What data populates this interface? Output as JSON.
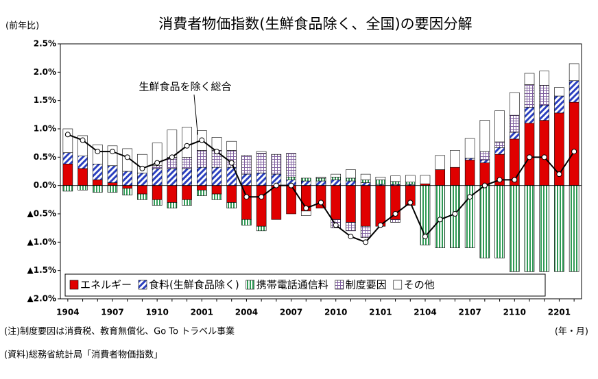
{
  "chart_data": {
    "type": "stacked_bar_line",
    "title": "消費者物価指数(生鮮食品除く、全国)の要因分解",
    "y_label": "(前年比)",
    "x_label": "(年・月)",
    "note": "(注)制度要因は消費税、教育無償化、Go To トラベル事業",
    "source": "(資料)総務省統計局「消費者物価指数」",
    "categories": [
      "1904",
      null,
      null,
      "1907",
      null,
      null,
      "1910",
      null,
      null,
      "2001",
      null,
      null,
      "2004",
      null,
      null,
      "2007",
      null,
      null,
      "2010",
      null,
      null,
      "2101",
      null,
      null,
      "2104",
      null,
      null,
      "2107",
      null,
      null,
      "2110",
      null,
      null,
      "2201",
      null
    ],
    "ylim": [
      -2.0,
      2.5
    ],
    "yticks": [
      {
        "value": 2.5,
        "label": "2.5%"
      },
      {
        "value": 2.0,
        "label": "2.0%"
      },
      {
        "value": 1.5,
        "label": "1.5%"
      },
      {
        "value": 1.0,
        "label": "1.0%"
      },
      {
        "value": 0.5,
        "label": "0.5%"
      },
      {
        "value": 0.0,
        "label": "0.0%"
      },
      {
        "value": -0.5,
        "label": "▲0.5%"
      },
      {
        "value": -1.0,
        "label": "▲1.0%"
      },
      {
        "value": -1.5,
        "label": "▲1.5%"
      },
      {
        "value": -2.0,
        "label": "▲2.0%"
      }
    ],
    "grid": false,
    "series": [
      {
        "name": "エネルギー",
        "color": "#e00000",
        "pattern": "solid",
        "values": [
          0.38,
          0.3,
          0.1,
          0.05,
          -0.05,
          -0.15,
          -0.25,
          -0.3,
          -0.25,
          -0.08,
          -0.15,
          -0.3,
          -0.6,
          -0.72,
          -0.6,
          -0.5,
          -0.45,
          -0.4,
          -0.6,
          -0.65,
          -0.72,
          -0.72,
          -0.6,
          -0.35,
          0.03,
          0.28,
          0.32,
          0.45,
          0.4,
          0.55,
          0.82,
          1.1,
          1.15,
          1.28,
          1.47
        ]
      },
      {
        "name": "食料(生鮮食品除く)",
        "color": "#2a3fbf",
        "pattern": "diagonal",
        "values": [
          0.2,
          0.22,
          0.28,
          0.3,
          0.25,
          0.22,
          0.3,
          0.3,
          0.3,
          0.32,
          0.32,
          0.32,
          0.2,
          0.22,
          0.2,
          0.1,
          0.08,
          0.08,
          0.1,
          0.08,
          0.05,
          0.02,
          0.02,
          0.02,
          0.0,
          0.0,
          0.0,
          0.03,
          0.05,
          0.12,
          0.12,
          0.28,
          0.27,
          0.3,
          0.38
        ]
      },
      {
        "name": "携帯電話通信料",
        "color": "#2f9a55",
        "pattern": "vertical",
        "values": [
          -0.1,
          -0.08,
          -0.12,
          -0.12,
          -0.12,
          -0.1,
          -0.1,
          -0.1,
          -0.1,
          -0.1,
          -0.1,
          -0.1,
          -0.1,
          -0.08,
          0.0,
          0.05,
          0.05,
          0.05,
          0.05,
          0.05,
          0.05,
          0.08,
          0.05,
          0.04,
          -1.05,
          -1.1,
          -1.1,
          -1.1,
          -1.28,
          -1.28,
          -1.52,
          -1.52,
          -1.52,
          -1.52,
          -1.52
        ]
      },
      {
        "name": "制度要因",
        "color": "#8060a0",
        "pattern": "grid",
        "values": [
          0,
          0,
          0,
          0,
          0,
          0,
          0.05,
          0.2,
          0.2,
          0.3,
          0.3,
          0.3,
          0.33,
          0.35,
          0.35,
          0.42,
          0,
          0,
          -0.15,
          -0.15,
          -0.2,
          0,
          -0.05,
          0,
          0,
          0,
          0,
          0,
          0.15,
          0.1,
          0.3,
          0.4,
          0.35,
          0,
          0
        ]
      },
      {
        "name": "その他",
        "color": "#ffffff",
        "pattern": "solid",
        "values": [
          0.42,
          0.36,
          0.34,
          0.35,
          0.4,
          0.33,
          0.4,
          0.48,
          0.53,
          0.35,
          0.23,
          0.16,
          0,
          0.03,
          0,
          0,
          -0.08,
          0.02,
          0.05,
          0.15,
          0.1,
          0.05,
          0.1,
          0.12,
          0.15,
          0.25,
          0.3,
          0.35,
          0.55,
          0.55,
          0.4,
          0.2,
          0.25,
          0.15,
          0.3
        ]
      },
      {
        "name": "生鮮食品を除く総合",
        "color": "#000000",
        "kind": "line",
        "values": [
          0.9,
          0.8,
          0.6,
          0.6,
          0.5,
          0.3,
          0.4,
          0.5,
          0.7,
          0.8,
          0.6,
          0.4,
          -0.2,
          -0.2,
          0.0,
          0.0,
          -0.4,
          -0.3,
          -0.7,
          -0.9,
          -1.0,
          -0.7,
          -0.5,
          -0.3,
          -0.9,
          -0.6,
          -0.5,
          -0.2,
          0.0,
          0.1,
          0.1,
          0.5,
          0.5,
          0.2,
          0.6
        ]
      }
    ]
  }
}
